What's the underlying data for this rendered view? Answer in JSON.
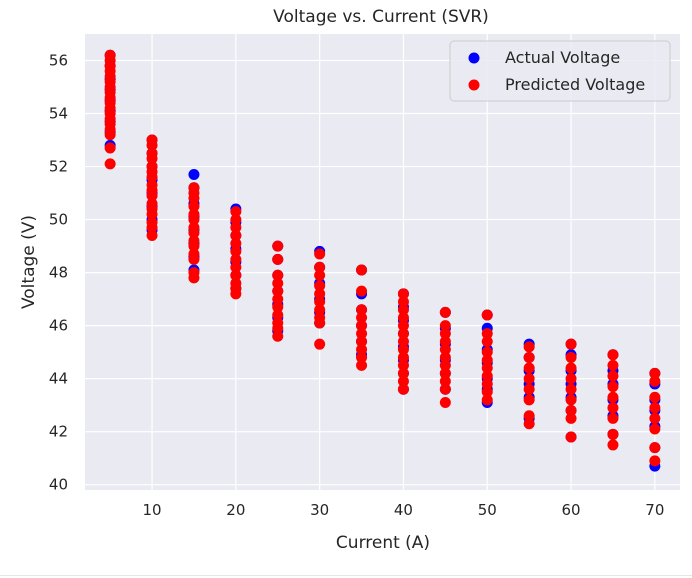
{
  "chart_data": {
    "type": "scatter",
    "title": "Voltage vs. Current (SVR)",
    "xlabel": "Current (A)",
    "ylabel": "Voltage (V)",
    "xlim": [
      2,
      73
    ],
    "ylim": [
      39.8,
      57
    ],
    "x_ticks": [
      10,
      20,
      30,
      40,
      50,
      60,
      70
    ],
    "y_ticks": [
      40,
      42,
      44,
      46,
      48,
      50,
      52,
      54,
      56
    ],
    "grid": true,
    "legend_position": "top-right",
    "style": {
      "background": "#eaeaf2",
      "grid_color": "#ffffff"
    },
    "series": [
      {
        "name": "Actual Voltage",
        "color": "#0000ff",
        "points": [
          [
            5,
            56.2
          ],
          [
            5,
            55.8
          ],
          [
            5,
            55.3
          ],
          [
            5,
            54.9
          ],
          [
            5,
            54.5
          ],
          [
            5,
            54.1
          ],
          [
            5,
            53.7
          ],
          [
            5,
            53.3
          ],
          [
            5,
            52.8
          ],
          [
            10,
            53.0
          ],
          [
            10,
            52.5
          ],
          [
            10,
            52.0
          ],
          [
            10,
            51.5
          ],
          [
            10,
            51.0
          ],
          [
            10,
            50.5
          ],
          [
            10,
            50.0
          ],
          [
            10,
            49.6
          ],
          [
            15,
            51.7
          ],
          [
            15,
            51.2
          ],
          [
            15,
            50.6
          ],
          [
            15,
            50.1
          ],
          [
            15,
            49.6
          ],
          [
            15,
            49.1
          ],
          [
            15,
            48.6
          ],
          [
            15,
            48.1
          ],
          [
            20,
            50.4
          ],
          [
            20,
            49.9
          ],
          [
            20,
            49.4
          ],
          [
            20,
            48.9
          ],
          [
            20,
            48.4
          ],
          [
            20,
            47.9
          ],
          [
            20,
            47.4
          ],
          [
            25,
            49.0
          ],
          [
            25,
            48.5
          ],
          [
            25,
            47.9
          ],
          [
            25,
            47.3
          ],
          [
            25,
            46.8
          ],
          [
            25,
            46.3
          ],
          [
            25,
            45.8
          ],
          [
            30,
            48.8
          ],
          [
            30,
            48.2
          ],
          [
            30,
            47.6
          ],
          [
            30,
            47.0
          ],
          [
            30,
            46.5
          ],
          [
            30,
            46.1
          ],
          [
            35,
            48.1
          ],
          [
            35,
            47.2
          ],
          [
            35,
            46.6
          ],
          [
            35,
            46.0
          ],
          [
            35,
            45.4
          ],
          [
            35,
            44.9
          ],
          [
            40,
            47.2
          ],
          [
            40,
            46.7
          ],
          [
            40,
            46.2
          ],
          [
            40,
            45.7
          ],
          [
            40,
            45.2
          ],
          [
            40,
            44.7
          ],
          [
            40,
            44.2
          ],
          [
            40,
            43.6
          ],
          [
            45,
            46.5
          ],
          [
            45,
            45.9
          ],
          [
            45,
            45.3
          ],
          [
            45,
            44.7
          ],
          [
            45,
            44.2
          ],
          [
            45,
            43.6
          ],
          [
            50,
            46.4
          ],
          [
            50,
            45.9
          ],
          [
            50,
            45.1
          ],
          [
            50,
            44.6
          ],
          [
            50,
            44.0
          ],
          [
            50,
            43.6
          ],
          [
            50,
            43.1
          ],
          [
            55,
            45.3
          ],
          [
            55,
            44.8
          ],
          [
            55,
            44.3
          ],
          [
            55,
            43.8
          ],
          [
            55,
            43.3
          ],
          [
            55,
            42.5
          ],
          [
            60,
            45.3
          ],
          [
            60,
            44.9
          ],
          [
            60,
            44.3
          ],
          [
            60,
            43.8
          ],
          [
            60,
            43.3
          ],
          [
            60,
            42.8
          ],
          [
            60,
            41.8
          ],
          [
            65,
            44.9
          ],
          [
            65,
            44.3
          ],
          [
            65,
            43.8
          ],
          [
            65,
            43.2
          ],
          [
            65,
            42.6
          ],
          [
            65,
            41.9
          ],
          [
            70,
            44.2
          ],
          [
            70,
            43.8
          ],
          [
            70,
            43.2
          ],
          [
            70,
            42.8
          ],
          [
            70,
            42.2
          ],
          [
            70,
            41.4
          ],
          [
            70,
            40.7
          ]
        ]
      },
      {
        "name": "Predicted Voltage",
        "color": "#ff0000",
        "points": [
          [
            5,
            56.2
          ],
          [
            5,
            56.0
          ],
          [
            5,
            55.8
          ],
          [
            5,
            55.6
          ],
          [
            5,
            55.4
          ],
          [
            5,
            55.2
          ],
          [
            5,
            55.0
          ],
          [
            5,
            54.8
          ],
          [
            5,
            54.6
          ],
          [
            5,
            54.4
          ],
          [
            5,
            54.2
          ],
          [
            5,
            54.0
          ],
          [
            5,
            53.8
          ],
          [
            5,
            53.6
          ],
          [
            5,
            53.4
          ],
          [
            5,
            53.2
          ],
          [
            5,
            52.7
          ],
          [
            5,
            52.1
          ],
          [
            10,
            53.0
          ],
          [
            10,
            52.8
          ],
          [
            10,
            52.5
          ],
          [
            10,
            52.3
          ],
          [
            10,
            52.0
          ],
          [
            10,
            51.8
          ],
          [
            10,
            51.6
          ],
          [
            10,
            51.3
          ],
          [
            10,
            51.1
          ],
          [
            10,
            50.9
          ],
          [
            10,
            50.6
          ],
          [
            10,
            50.4
          ],
          [
            10,
            50.2
          ],
          [
            10,
            49.9
          ],
          [
            10,
            49.7
          ],
          [
            10,
            49.4
          ],
          [
            15,
            51.2
          ],
          [
            15,
            51.0
          ],
          [
            15,
            50.8
          ],
          [
            15,
            50.5
          ],
          [
            15,
            50.2
          ],
          [
            15,
            50.0
          ],
          [
            15,
            49.7
          ],
          [
            15,
            49.5
          ],
          [
            15,
            49.2
          ],
          [
            15,
            49.0
          ],
          [
            15,
            48.7
          ],
          [
            15,
            48.5
          ],
          [
            15,
            48.0
          ],
          [
            15,
            47.8
          ],
          [
            20,
            50.3
          ],
          [
            20,
            50.0
          ],
          [
            20,
            49.7
          ],
          [
            20,
            49.4
          ],
          [
            20,
            49.1
          ],
          [
            20,
            48.8
          ],
          [
            20,
            48.5
          ],
          [
            20,
            48.2
          ],
          [
            20,
            47.9
          ],
          [
            20,
            47.6
          ],
          [
            20,
            47.4
          ],
          [
            20,
            47.2
          ],
          [
            25,
            49.0
          ],
          [
            25,
            48.5
          ],
          [
            25,
            47.9
          ],
          [
            25,
            47.6
          ],
          [
            25,
            47.3
          ],
          [
            25,
            47.0
          ],
          [
            25,
            46.7
          ],
          [
            25,
            46.4
          ],
          [
            25,
            46.1
          ],
          [
            25,
            45.9
          ],
          [
            25,
            45.6
          ],
          [
            30,
            48.7
          ],
          [
            30,
            48.2
          ],
          [
            30,
            47.9
          ],
          [
            30,
            47.5
          ],
          [
            30,
            47.2
          ],
          [
            30,
            46.9
          ],
          [
            30,
            46.6
          ],
          [
            30,
            46.3
          ],
          [
            30,
            46.1
          ],
          [
            30,
            45.3
          ],
          [
            35,
            48.1
          ],
          [
            35,
            47.3
          ],
          [
            35,
            46.6
          ],
          [
            35,
            46.3
          ],
          [
            35,
            46.0
          ],
          [
            35,
            45.7
          ],
          [
            35,
            45.4
          ],
          [
            35,
            45.1
          ],
          [
            35,
            44.8
          ],
          [
            35,
            44.5
          ],
          [
            40,
            47.2
          ],
          [
            40,
            46.9
          ],
          [
            40,
            46.6
          ],
          [
            40,
            46.3
          ],
          [
            40,
            46.0
          ],
          [
            40,
            45.7
          ],
          [
            40,
            45.4
          ],
          [
            40,
            45.1
          ],
          [
            40,
            44.8
          ],
          [
            40,
            44.5
          ],
          [
            40,
            44.2
          ],
          [
            40,
            43.9
          ],
          [
            40,
            43.6
          ],
          [
            45,
            46.5
          ],
          [
            45,
            46.0
          ],
          [
            45,
            45.7
          ],
          [
            45,
            45.4
          ],
          [
            45,
            45.1
          ],
          [
            45,
            44.8
          ],
          [
            45,
            44.5
          ],
          [
            45,
            44.2
          ],
          [
            45,
            43.9
          ],
          [
            45,
            43.6
          ],
          [
            45,
            43.1
          ],
          [
            50,
            46.4
          ],
          [
            50,
            45.7
          ],
          [
            50,
            45.4
          ],
          [
            50,
            45.0
          ],
          [
            50,
            44.7
          ],
          [
            50,
            44.4
          ],
          [
            50,
            44.1
          ],
          [
            50,
            43.8
          ],
          [
            50,
            43.5
          ],
          [
            50,
            43.2
          ],
          [
            55,
            45.2
          ],
          [
            55,
            44.8
          ],
          [
            55,
            44.4
          ],
          [
            55,
            44.0
          ],
          [
            55,
            43.6
          ],
          [
            55,
            43.2
          ],
          [
            55,
            42.6
          ],
          [
            55,
            42.3
          ],
          [
            60,
            45.3
          ],
          [
            60,
            44.8
          ],
          [
            60,
            44.4
          ],
          [
            60,
            44.0
          ],
          [
            60,
            43.6
          ],
          [
            60,
            43.2
          ],
          [
            60,
            42.8
          ],
          [
            60,
            42.5
          ],
          [
            60,
            41.8
          ],
          [
            65,
            44.9
          ],
          [
            65,
            44.5
          ],
          [
            65,
            44.1
          ],
          [
            65,
            43.7
          ],
          [
            65,
            43.3
          ],
          [
            65,
            42.9
          ],
          [
            65,
            42.5
          ],
          [
            65,
            41.9
          ],
          [
            65,
            41.5
          ],
          [
            70,
            44.2
          ],
          [
            70,
            43.9
          ],
          [
            70,
            43.3
          ],
          [
            70,
            42.9
          ],
          [
            70,
            42.5
          ],
          [
            70,
            42.1
          ],
          [
            70,
            41.4
          ],
          [
            70,
            40.9
          ]
        ]
      }
    ]
  }
}
